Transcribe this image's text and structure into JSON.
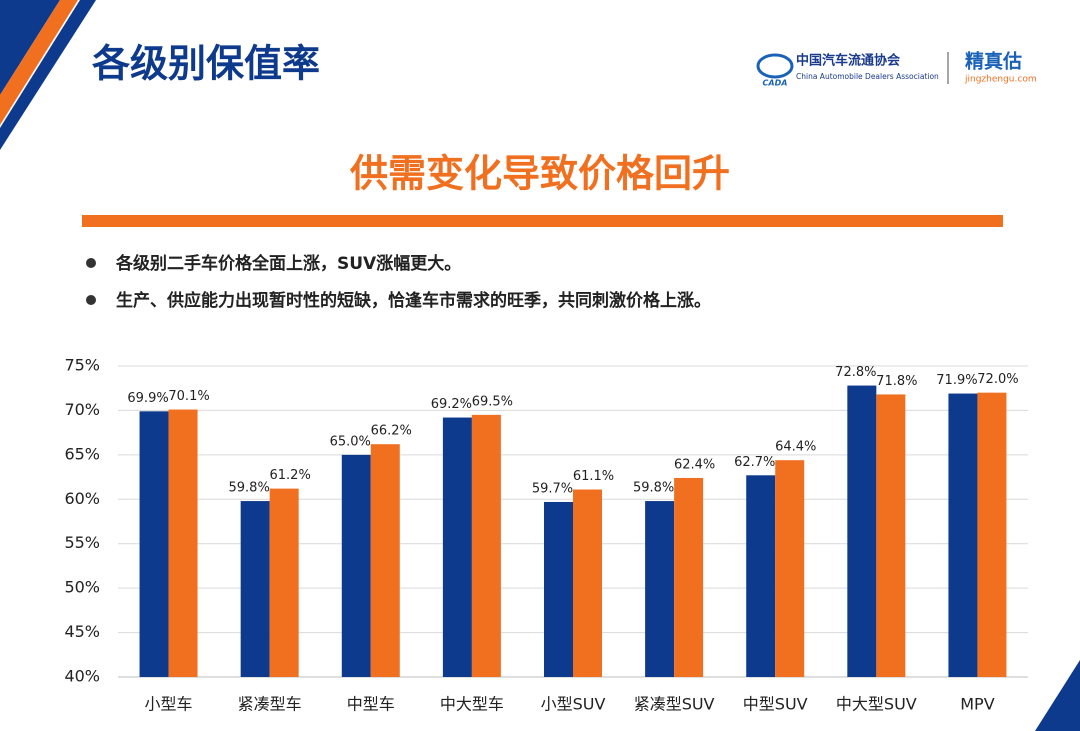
{
  "header": {
    "title": "各级别保值率",
    "logo_cn": "中国汽车流通协会",
    "logo_en": "China Automobile Dealers Association",
    "logo_abbr": "CADA",
    "brand": "精真估",
    "brand_url": "jingzhengu.com"
  },
  "subtitle": "供需变化导致价格回升",
  "bullets": [
    "各级别二手车价格全面上涨，SUV涨幅更大。",
    "生产、供应能力出现暂时性的短缺，恰逢车市需求的旺季，共同刺激价格上涨。"
  ],
  "chart_data": {
    "type": "bar",
    "categories": [
      "小型车",
      "紧凑型车",
      "中型车",
      "中大型车",
      "小型SUV",
      "紧凑型SUV",
      "中型SUV",
      "中大型SUV",
      "MPV"
    ],
    "series": [
      {
        "color": "#0d3a8c",
        "values": [
          69.9,
          59.8,
          65.0,
          69.2,
          59.7,
          59.8,
          62.7,
          72.8,
          71.9
        ],
        "value_labels": [
          "69.9%",
          "59.8%",
          "65.0%",
          "69.2%",
          "59.7%",
          "59.8%",
          "62.7%",
          "72.8%",
          "71.9%"
        ]
      },
      {
        "color": "#f07020",
        "values": [
          70.1,
          61.2,
          66.2,
          69.5,
          61.1,
          62.4,
          64.4,
          71.8,
          72.0
        ],
        "value_labels": [
          "70.1%",
          "61.2%",
          "66.2%",
          "69.5%",
          "61.1%",
          "62.4%",
          "64.4%",
          "71.8%",
          "72.0%"
        ]
      }
    ],
    "ylim": [
      40,
      75
    ],
    "yticks": [
      {
        "value": 40,
        "label": "40%"
      },
      {
        "value": 45,
        "label": "45%"
      },
      {
        "value": 50,
        "label": "50%"
      },
      {
        "value": 55,
        "label": "55%"
      },
      {
        "value": 60,
        "label": "60%"
      },
      {
        "value": 65,
        "label": "65%"
      },
      {
        "value": 70,
        "label": "70%"
      },
      {
        "value": 75,
        "label": "75%"
      }
    ],
    "grid": true
  }
}
